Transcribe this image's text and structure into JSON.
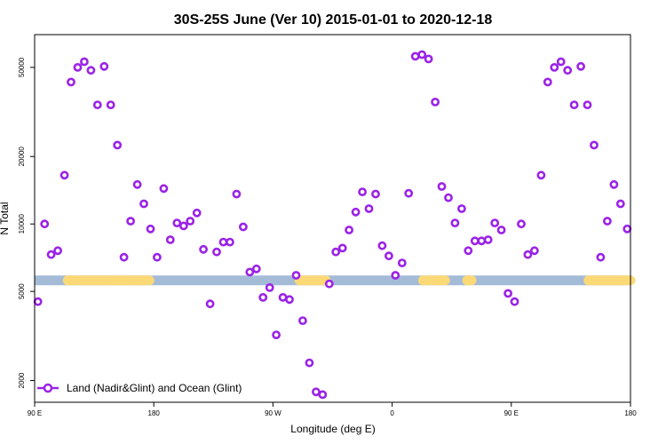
{
  "chart_data": {
    "type": "scatter",
    "title": "30S-25S June (Ver 10)   2015-01-01 to 2020-12-18",
    "xlabel": "Longitude (deg E)",
    "ylabel": "N Total",
    "xlim": [
      -90,
      180
    ],
    "ylim_log": [
      1600,
      70000
    ],
    "y_scale": "log",
    "x_ticks": [
      {
        "value": -90,
        "label": "90 E"
      },
      {
        "value": -36,
        "label": "180"
      },
      {
        "value": 18,
        "label": "90 W"
      },
      {
        "value": 72,
        "label": "0"
      },
      {
        "value": 126,
        "label": "90 E"
      },
      {
        "value": 180,
        "label": "180"
      }
    ],
    "y_ticks": [
      {
        "value": 2000,
        "label": "2000"
      },
      {
        "value": 5000,
        "label": "5000"
      },
      {
        "value": 10000,
        "label": "10000"
      },
      {
        "value": 20000,
        "label": "20000"
      },
      {
        "value": 50000,
        "label": "50000"
      }
    ],
    "band": {
      "y": 5600,
      "color": "#a4bbd8",
      "land_color": "#fcd977",
      "land_segments": [
        [
          -75,
          -51
        ],
        [
          -52,
          -38
        ],
        [
          30,
          42
        ],
        [
          86,
          96
        ],
        [
          106,
          108
        ],
        [
          161,
          184
        ]
      ]
    },
    "legend": {
      "label": "Land (Nadir&Glint) and Ocean (Glint)",
      "position": "bottom-left"
    },
    "marker_color": "#9b22e8",
    "series": [
      {
        "name": "Land (Nadir&Glint) and Ocean (Glint)",
        "x": [
          -88.5,
          -85.5,
          -82.5,
          -79.5,
          -76.5,
          -73.5,
          -70.5,
          -67.5,
          -64.5,
          -61.5,
          -58.5,
          -55.5,
          -52.5,
          -49.5,
          -46.5,
          -43.5,
          -40.5,
          -37.5,
          -34.5,
          -31.5,
          -28.5,
          -25.5,
          -22.5,
          -19.5,
          -16.5,
          -13.5,
          -10.5,
          -7.5,
          -4.5,
          -1.5,
          1.5,
          4.5,
          7.5,
          10.5,
          13.5,
          16.5,
          19.5,
          22.5,
          25.5,
          28.5,
          31.5,
          34.5,
          37.5,
          40.5,
          43.5,
          46.5,
          49.5,
          52.5,
          55.5,
          58.5,
          61.5,
          64.5,
          67.5,
          70.5,
          73.5,
          76.5,
          79.5,
          82.5,
          85.5,
          88.5,
          91.5,
          94.5,
          97.5,
          100.5,
          103.5,
          106.5,
          109.5,
          112.5,
          115.5,
          118.5,
          121.5,
          124.5,
          127.5,
          130.5,
          133.5,
          136.5,
          139.5,
          142.5,
          145.5,
          148.5,
          151.5,
          154.5,
          157.5,
          160.5,
          163.5,
          166.5,
          169.5,
          172.5,
          175.5,
          178.5
        ],
        "y": [
          4500,
          10000,
          7300,
          7600,
          16500,
          43000,
          50000,
          53000,
          48500,
          34000,
          50500,
          34000,
          22500,
          7100,
          10300,
          15000,
          12300,
          9500,
          7100,
          14400,
          8500,
          10100,
          9800,
          10300,
          11200,
          7700,
          4400,
          7500,
          8300,
          8300,
          13600,
          9700,
          6100,
          6300,
          4700,
          5200,
          3200,
          4700,
          4600,
          5900,
          3700,
          2400,
          1780,
          1730,
          5400,
          7500,
          7800,
          9400,
          11300,
          13900,
          11700,
          13600,
          8000,
          7200,
          5900,
          6700,
          13700,
          56000,
          57000,
          54500,
          35000,
          14700,
          13100,
          10100,
          11700,
          7600,
          8400,
          8400,
          8500,
          10100,
          9400,
          4900,
          4500,
          10000,
          7300,
          7600,
          16500,
          43000,
          50000,
          53000,
          48500,
          34000,
          50500,
          34000,
          22500,
          7100,
          10300,
          15000,
          12300,
          9500
        ]
      }
    ]
  }
}
